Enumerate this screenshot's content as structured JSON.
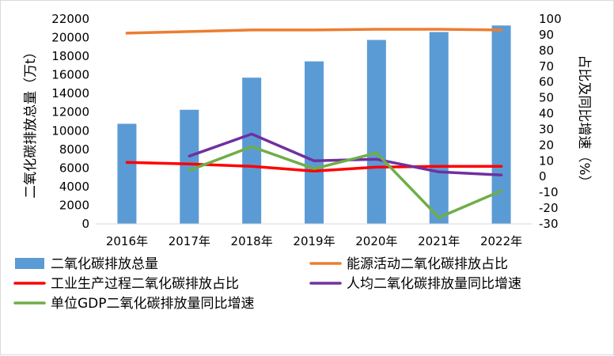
{
  "chart_data": {
    "type": "bar",
    "categories": [
      "2016年",
      "2017年",
      "2018年",
      "2019年",
      "2020年",
      "2021年",
      "2022年"
    ],
    "ylabel": "二氧化碳排放总量（万t）",
    "y2label": "占比及同比增速（%）",
    "ylim": [
      0,
      22000
    ],
    "y2lim": [
      -30,
      100
    ],
    "yticks": [
      "0",
      "2000",
      "4000",
      "6000",
      "8000",
      "10000",
      "12000",
      "14000",
      "16000",
      "18000",
      "20000",
      "22000"
    ],
    "y2ticks": [
      "-30",
      "-20",
      "-10",
      "0",
      "10",
      "20",
      "30",
      "40",
      "50",
      "60",
      "70",
      "80",
      "90",
      "100"
    ],
    "grid": false,
    "legend_position": "bottom",
    "series": [
      {
        "name": "二氧化碳排放总量",
        "type": "bar",
        "axis": "left",
        "color": "#5b9bd5",
        "values": [
          10750,
          12250,
          15700,
          17450,
          19750,
          20600,
          21300
        ]
      },
      {
        "name": "能源活动二氧化碳排放占比",
        "type": "line",
        "axis": "right",
        "color": "#ed7d31",
        "values": [
          91,
          92,
          93,
          93,
          93.5,
          93.5,
          93
        ]
      },
      {
        "name": "工业生产过程二氧化碳排放占比",
        "type": "line",
        "axis": "right",
        "color": "#ff0000",
        "values": [
          9,
          8,
          6.5,
          3.5,
          6,
          6.5,
          6.5
        ]
      },
      {
        "name": "人均二氧化碳排放量同比增速",
        "type": "line",
        "axis": "right",
        "color": "#7030a0",
        "values": [
          null,
          13,
          27,
          10,
          11,
          3,
          1
        ]
      },
      {
        "name": "单位GDP二氧化碳排放量同比增速",
        "type": "line",
        "axis": "right",
        "color": "#70ad47",
        "values": [
          null,
          4,
          19,
          5,
          15,
          -26,
          -9
        ]
      }
    ]
  }
}
